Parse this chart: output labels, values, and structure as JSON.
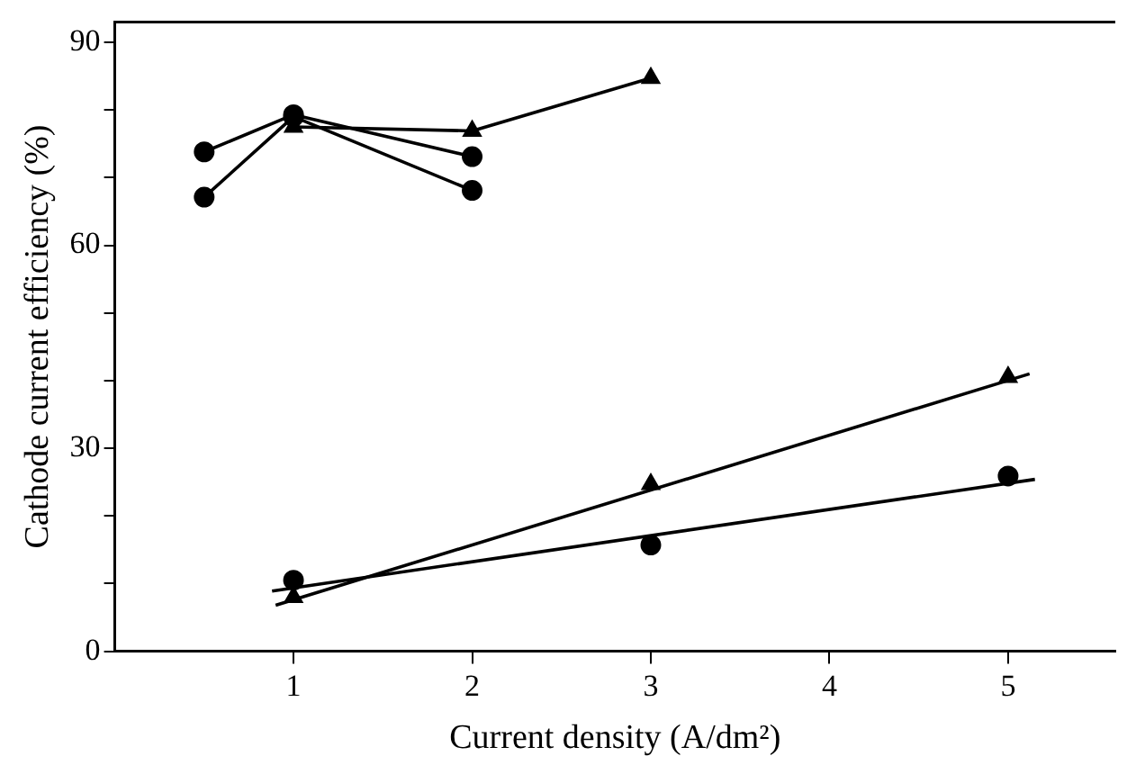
{
  "chart_data": {
    "type": "line",
    "xlabel": "Current density (A/dm²)",
    "ylabel": "Cathode current efficiency (%)",
    "xlim": [
      0,
      5.6
    ],
    "ylim": [
      0,
      93
    ],
    "xticks": [
      1,
      2,
      3,
      4,
      5
    ],
    "yticks": [
      0,
      {
        "value": 10,
        "label": null
      },
      {
        "value": 20,
        "label": null
      },
      30,
      {
        "value": 40,
        "label": null
      },
      {
        "value": 50,
        "label": null
      },
      60,
      {
        "value": 70,
        "label": null
      },
      {
        "value": 80,
        "label": null
      },
      90
    ],
    "grid": false,
    "legend": false,
    "series": [
      {
        "type": "line",
        "color": "#000000",
        "marker": "circle",
        "x": [
          0.5,
          1,
          2
        ],
        "values": [
          73.8,
          79.3,
          73.1
        ]
      },
      {
        "type": "line",
        "color": "#000000",
        "marker": "circle",
        "x": [
          0.5,
          1,
          2
        ],
        "values": [
          67.1,
          79,
          68.1
        ]
      },
      {
        "type": "line",
        "color": "#000000",
        "marker": "triangle",
        "x": [
          1,
          2,
          3
        ],
        "values": [
          77.5,
          76.9,
          84.7
        ]
      },
      {
        "type": "scatter",
        "color": "#000000",
        "marker": "triangle",
        "x": [
          1,
          3,
          5
        ],
        "values": [
          8,
          24.7,
          40.5
        ]
      },
      {
        "type": "line",
        "color": "#000000",
        "marker": "none",
        "x": [
          0.9,
          5.12
        ],
        "values": [
          6.8,
          41
        ]
      },
      {
        "type": "scatter",
        "color": "#000000",
        "marker": "circle",
        "x": [
          1,
          3,
          5
        ],
        "values": [
          10.5,
          15.7,
          25.9
        ]
      },
      {
        "type": "line",
        "color": "#000000",
        "marker": "none",
        "x": [
          0.88,
          5.15
        ],
        "values": [
          8.9,
          25.4
        ]
      }
    ]
  }
}
